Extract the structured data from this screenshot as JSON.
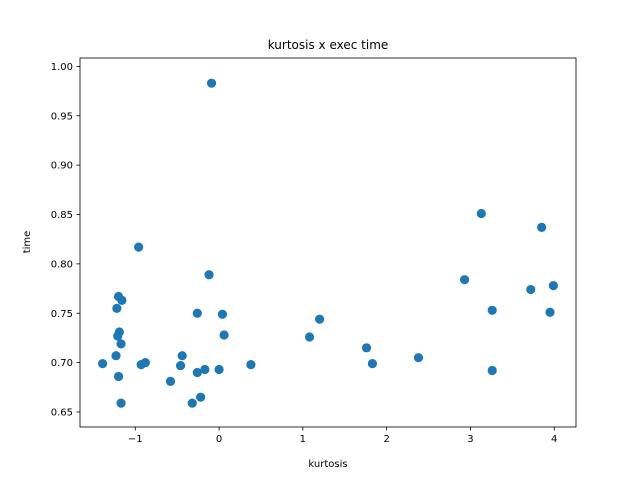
{
  "chart_data": {
    "type": "scatter",
    "title": "kurtosis x exec time",
    "xlabel": "kurtosis",
    "ylabel": "time",
    "xlim": [
      -1.66,
      4.26
    ],
    "ylim": [
      0.6348,
      1.0085
    ],
    "xticks": [
      -1,
      0,
      1,
      2,
      3,
      4
    ],
    "xtick_labels": [
      "−1",
      "0",
      "1",
      "2",
      "3",
      "4"
    ],
    "yticks": [
      0.65,
      0.7,
      0.75,
      0.8,
      0.85,
      0.9,
      0.95,
      1.0
    ],
    "ytick_labels": [
      "0.65",
      "0.70",
      "0.75",
      "0.80",
      "0.85",
      "0.90",
      "0.95",
      "1.00"
    ],
    "grid": false,
    "marker_color": "#1f77b4",
    "series": [
      {
        "points": [
          {
            "x": -1.39,
            "y": 0.699
          },
          {
            "x": -1.23,
            "y": 0.707
          },
          {
            "x": -1.22,
            "y": 0.755
          },
          {
            "x": -1.21,
            "y": 0.727
          },
          {
            "x": -1.2,
            "y": 0.767
          },
          {
            "x": -1.2,
            "y": 0.686
          },
          {
            "x": -1.19,
            "y": 0.731
          },
          {
            "x": -1.17,
            "y": 0.719
          },
          {
            "x": -1.17,
            "y": 0.659
          },
          {
            "x": -1.16,
            "y": 0.763
          },
          {
            "x": -0.96,
            "y": 0.817
          },
          {
            "x": -0.93,
            "y": 0.698
          },
          {
            "x": -0.88,
            "y": 0.7
          },
          {
            "x": -0.58,
            "y": 0.681
          },
          {
            "x": -0.46,
            "y": 0.697
          },
          {
            "x": -0.44,
            "y": 0.707
          },
          {
            "x": -0.32,
            "y": 0.659
          },
          {
            "x": -0.26,
            "y": 0.75
          },
          {
            "x": -0.26,
            "y": 0.69
          },
          {
            "x": -0.22,
            "y": 0.665
          },
          {
            "x": -0.17,
            "y": 0.693
          },
          {
            "x": -0.12,
            "y": 0.789
          },
          {
            "x": -0.09,
            "y": 0.983
          },
          {
            "x": 0.0,
            "y": 0.693
          },
          {
            "x": 0.04,
            "y": 0.749
          },
          {
            "x": 0.06,
            "y": 0.728
          },
          {
            "x": 0.38,
            "y": 0.698
          },
          {
            "x": 1.08,
            "y": 0.726
          },
          {
            "x": 1.2,
            "y": 0.744
          },
          {
            "x": 1.76,
            "y": 0.715
          },
          {
            "x": 1.83,
            "y": 0.699
          },
          {
            "x": 2.38,
            "y": 0.705
          },
          {
            "x": 2.93,
            "y": 0.784
          },
          {
            "x": 3.13,
            "y": 0.851
          },
          {
            "x": 3.26,
            "y": 0.753
          },
          {
            "x": 3.26,
            "y": 0.692
          },
          {
            "x": 3.72,
            "y": 0.774
          },
          {
            "x": 3.85,
            "y": 0.837
          },
          {
            "x": 3.95,
            "y": 0.751
          },
          {
            "x": 3.99,
            "y": 0.778
          }
        ]
      }
    ]
  }
}
